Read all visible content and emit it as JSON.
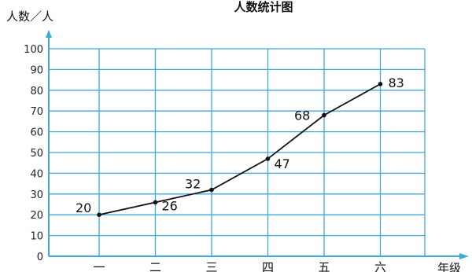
{
  "chart_data": {
    "type": "line",
    "title": "人数统计图",
    "ylabel": "人数／人",
    "xlabel": "年级",
    "categories": [
      "一",
      "二",
      "三",
      "四",
      "五",
      "六"
    ],
    "values": [
      20,
      26,
      32,
      47,
      68,
      83
    ],
    "ylim": [
      0,
      100
    ],
    "yticks": [
      "0",
      "10",
      "20",
      "30",
      "40",
      "50",
      "60",
      "70",
      "80",
      "90",
      "100"
    ],
    "data_labels": [
      "20",
      "26",
      "32",
      "47",
      "68",
      "83"
    ],
    "grid": true,
    "colors": {
      "grid": "#3fa8dd",
      "axis": "#3fa8dd",
      "line": "#111111"
    }
  }
}
